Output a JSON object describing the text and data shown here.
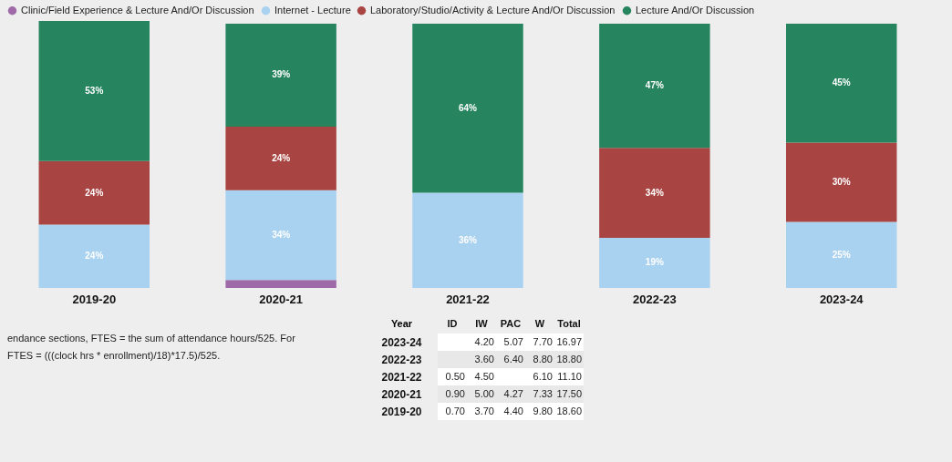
{
  "chart_data": [
    {
      "type": "bar",
      "stacked": true,
      "legend": "top",
      "categories": [
        "2019-20",
        "2020-21",
        "2021-22",
        "2022-23",
        "2023-24"
      ],
      "series": [
        {
          "name": "Clinic/Field Experience & Lecture And/Or Discussion",
          "color": "#9e6aa8",
          "values": [
            null,
            3,
            null,
            null,
            null
          ],
          "value_labels": [
            null,
            null,
            null,
            null,
            null
          ]
        },
        {
          "name": "Internet - Lecture",
          "color": "#a9d1f0",
          "values": [
            24,
            34,
            36,
            19,
            25
          ],
          "value_labels": [
            "24%",
            "34%",
            "36%",
            "19%",
            "25%"
          ]
        },
        {
          "name": "Laboratory/Studio/Activity & Lecture And/Or Discussion",
          "color": "#a84542",
          "values": [
            24,
            24,
            null,
            34,
            30
          ],
          "value_labels": [
            "24%",
            "24%",
            null,
            "34%",
            "30%"
          ]
        },
        {
          "name": "Lecture And/Or Discussion",
          "color": "#26855f",
          "values": [
            53,
            39,
            64,
            47,
            45
          ],
          "value_labels": [
            "53%",
            "39%",
            "64%",
            "47%",
            "45%"
          ]
        }
      ],
      "annotations": [
        "endance sections, FTES = the sum of attendance hours/525.  For",
        "FTES = (((clock hrs * enrollment)/18)*17.5)/525."
      ]
    },
    {
      "type": "heatmap",
      "ylabel": "Year",
      "categories": [
        "ID",
        "IW",
        "PAC",
        "W",
        "Total"
      ],
      "y_categories": [
        "2023-24",
        "2022-23",
        "2021-22",
        "2020-21",
        "2019-20"
      ],
      "cells": [
        [
          null,
          4.2,
          5.07,
          7.7,
          16.97
        ],
        [
          null,
          3.6,
          6.4,
          8.8,
          18.8
        ],
        [
          0.5,
          4.5,
          null,
          6.1,
          11.1
        ],
        [
          0.9,
          5.0,
          4.27,
          7.33,
          17.5
        ],
        [
          0.7,
          3.7,
          4.4,
          9.8,
          18.6
        ]
      ],
      "cell_labels": [
        [
          null,
          "4.20",
          "5.07",
          "7.70",
          "16.97"
        ],
        [
          null,
          "3.60",
          "6.40",
          "8.80",
          "18.80"
        ],
        [
          "0.50",
          "4.50",
          null,
          "6.10",
          "11.10"
        ],
        [
          "0.90",
          "5.00",
          "4.27",
          "7.33",
          "17.50"
        ],
        [
          "0.70",
          "3.70",
          "4.40",
          "9.80",
          "18.60"
        ]
      ]
    }
  ]
}
